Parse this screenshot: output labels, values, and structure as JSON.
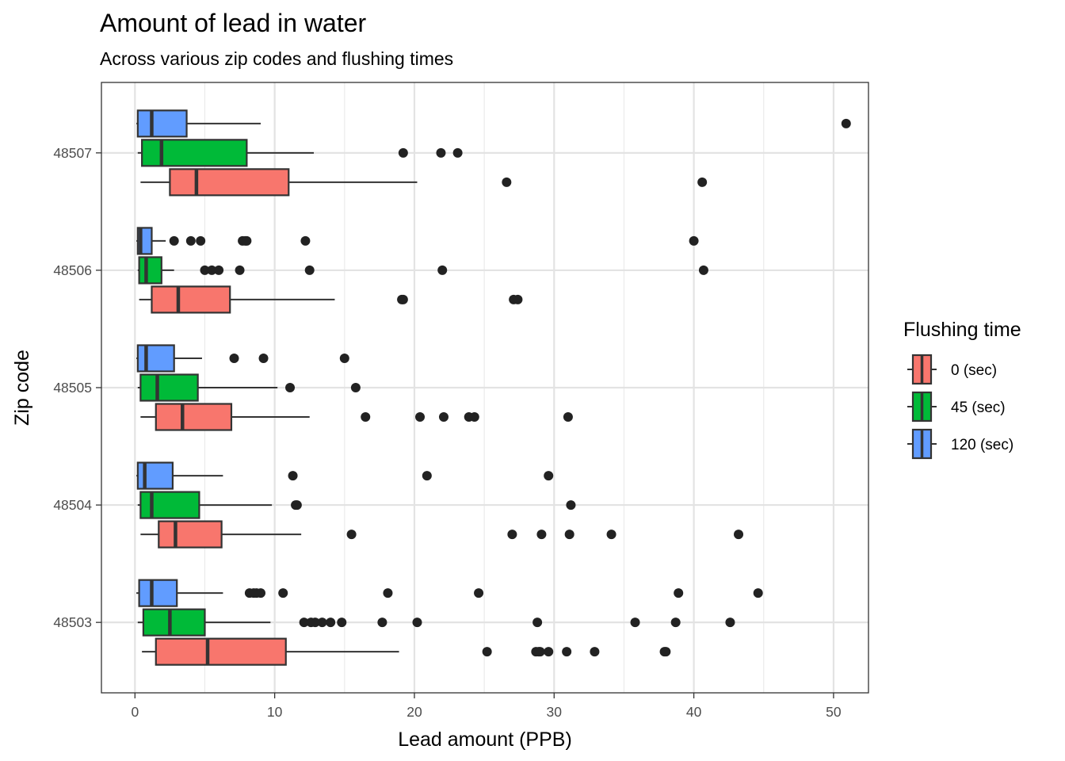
{
  "chart_data": {
    "type": "boxplot",
    "orientation": "horizontal",
    "title": "Amount of lead in water",
    "subtitle": "Across various zip codes and flushing times",
    "xlabel": "Lead amount (PPB)",
    "ylabel": "Zip code",
    "xlim": [
      -2.4,
      52.5
    ],
    "x_ticks": [
      0,
      10,
      20,
      30,
      40,
      50
    ],
    "grid": true,
    "legend": {
      "title": "Flushing time",
      "placement": "right"
    },
    "categories": [
      "48503",
      "48504",
      "48505",
      "48506",
      "48507"
    ],
    "series": [
      {
        "name": "0 (sec)",
        "color": "#F8766D",
        "boxes": [
          {
            "whisker_low": 0.5,
            "q1": 1.5,
            "median": 5.2,
            "q3": 10.8,
            "whisker_high": 18.9,
            "outliers": [
              25.2,
              28.7,
              28.9,
              29.0,
              29.6,
              30.9,
              32.9,
              37.9,
              38.0
            ]
          },
          {
            "whisker_low": 0.4,
            "q1": 1.7,
            "median": 2.9,
            "q3": 6.2,
            "whisker_high": 11.9,
            "outliers": [
              15.5,
              27.0,
              29.1,
              31.1,
              34.1,
              43.2
            ]
          },
          {
            "whisker_low": 0.4,
            "q1": 1.5,
            "median": 3.4,
            "q3": 6.9,
            "whisker_high": 12.5,
            "outliers": [
              16.5,
              20.4,
              22.1,
              23.9,
              24.3,
              31.0
            ]
          },
          {
            "whisker_low": 0.3,
            "q1": 1.2,
            "median": 3.1,
            "q3": 6.8,
            "whisker_high": 14.3,
            "outliers": [
              19.1,
              19.2,
              27.1,
              27.4
            ]
          },
          {
            "whisker_low": 0.4,
            "q1": 2.5,
            "median": 4.4,
            "q3": 11.0,
            "whisker_high": 20.2,
            "outliers": [
              26.6,
              40.6
            ]
          }
        ]
      },
      {
        "name": "45 (sec)",
        "color": "#00BA38",
        "boxes": [
          {
            "whisker_low": 0.2,
            "q1": 0.6,
            "median": 2.5,
            "q3": 5.0,
            "whisker_high": 9.7,
            "outliers": [
              12.1,
              12.6,
              12.9,
              13.4,
              14.0,
              14.8,
              17.7,
              20.2,
              28.8,
              35.8,
              38.7,
              42.6
            ]
          },
          {
            "whisker_low": 0.2,
            "q1": 0.4,
            "median": 1.2,
            "q3": 4.6,
            "whisker_high": 9.8,
            "outliers": [
              11.5,
              11.6,
              31.2
            ]
          },
          {
            "whisker_low": 0.2,
            "q1": 0.4,
            "median": 1.6,
            "q3": 4.5,
            "whisker_high": 10.2,
            "outliers": [
              11.1,
              15.8
            ]
          },
          {
            "whisker_low": 0.2,
            "q1": 0.3,
            "median": 0.8,
            "q3": 1.9,
            "whisker_high": 2.8,
            "outliers": [
              5.0,
              5.5,
              6.0,
              7.5,
              12.5,
              22.0,
              40.7
            ]
          },
          {
            "whisker_low": 0.2,
            "q1": 0.5,
            "median": 1.9,
            "q3": 8.0,
            "whisker_high": 12.8,
            "outliers": [
              19.2,
              21.9,
              23.1
            ]
          }
        ]
      },
      {
        "name": "120 (sec)",
        "color": "#619CFF",
        "boxes": [
          {
            "whisker_low": 0.1,
            "q1": 0.3,
            "median": 1.2,
            "q3": 3.0,
            "whisker_high": 6.3,
            "outliers": [
              8.2,
              8.5,
              8.7,
              9.0,
              10.6,
              18.1,
              24.6,
              38.9,
              44.6
            ]
          },
          {
            "whisker_low": 0.1,
            "q1": 0.2,
            "median": 0.7,
            "q3": 2.7,
            "whisker_high": 6.3,
            "outliers": [
              11.3,
              20.9,
              29.6
            ]
          },
          {
            "whisker_low": 0.1,
            "q1": 0.2,
            "median": 0.8,
            "q3": 2.8,
            "whisker_high": 4.8,
            "outliers": [
              7.1,
              9.2,
              15.0
            ]
          },
          {
            "whisker_low": 0.1,
            "q1": 0.2,
            "median": 0.4,
            "q3": 1.2,
            "whisker_high": 2.2,
            "outliers": [
              2.8,
              4.0,
              4.7,
              7.7,
              7.9,
              8.0,
              12.2,
              40.0
            ]
          },
          {
            "whisker_low": 0.1,
            "q1": 0.2,
            "median": 1.2,
            "q3": 3.7,
            "whisker_high": 9.0,
            "outliers": [
              50.9
            ]
          }
        ]
      }
    ]
  }
}
